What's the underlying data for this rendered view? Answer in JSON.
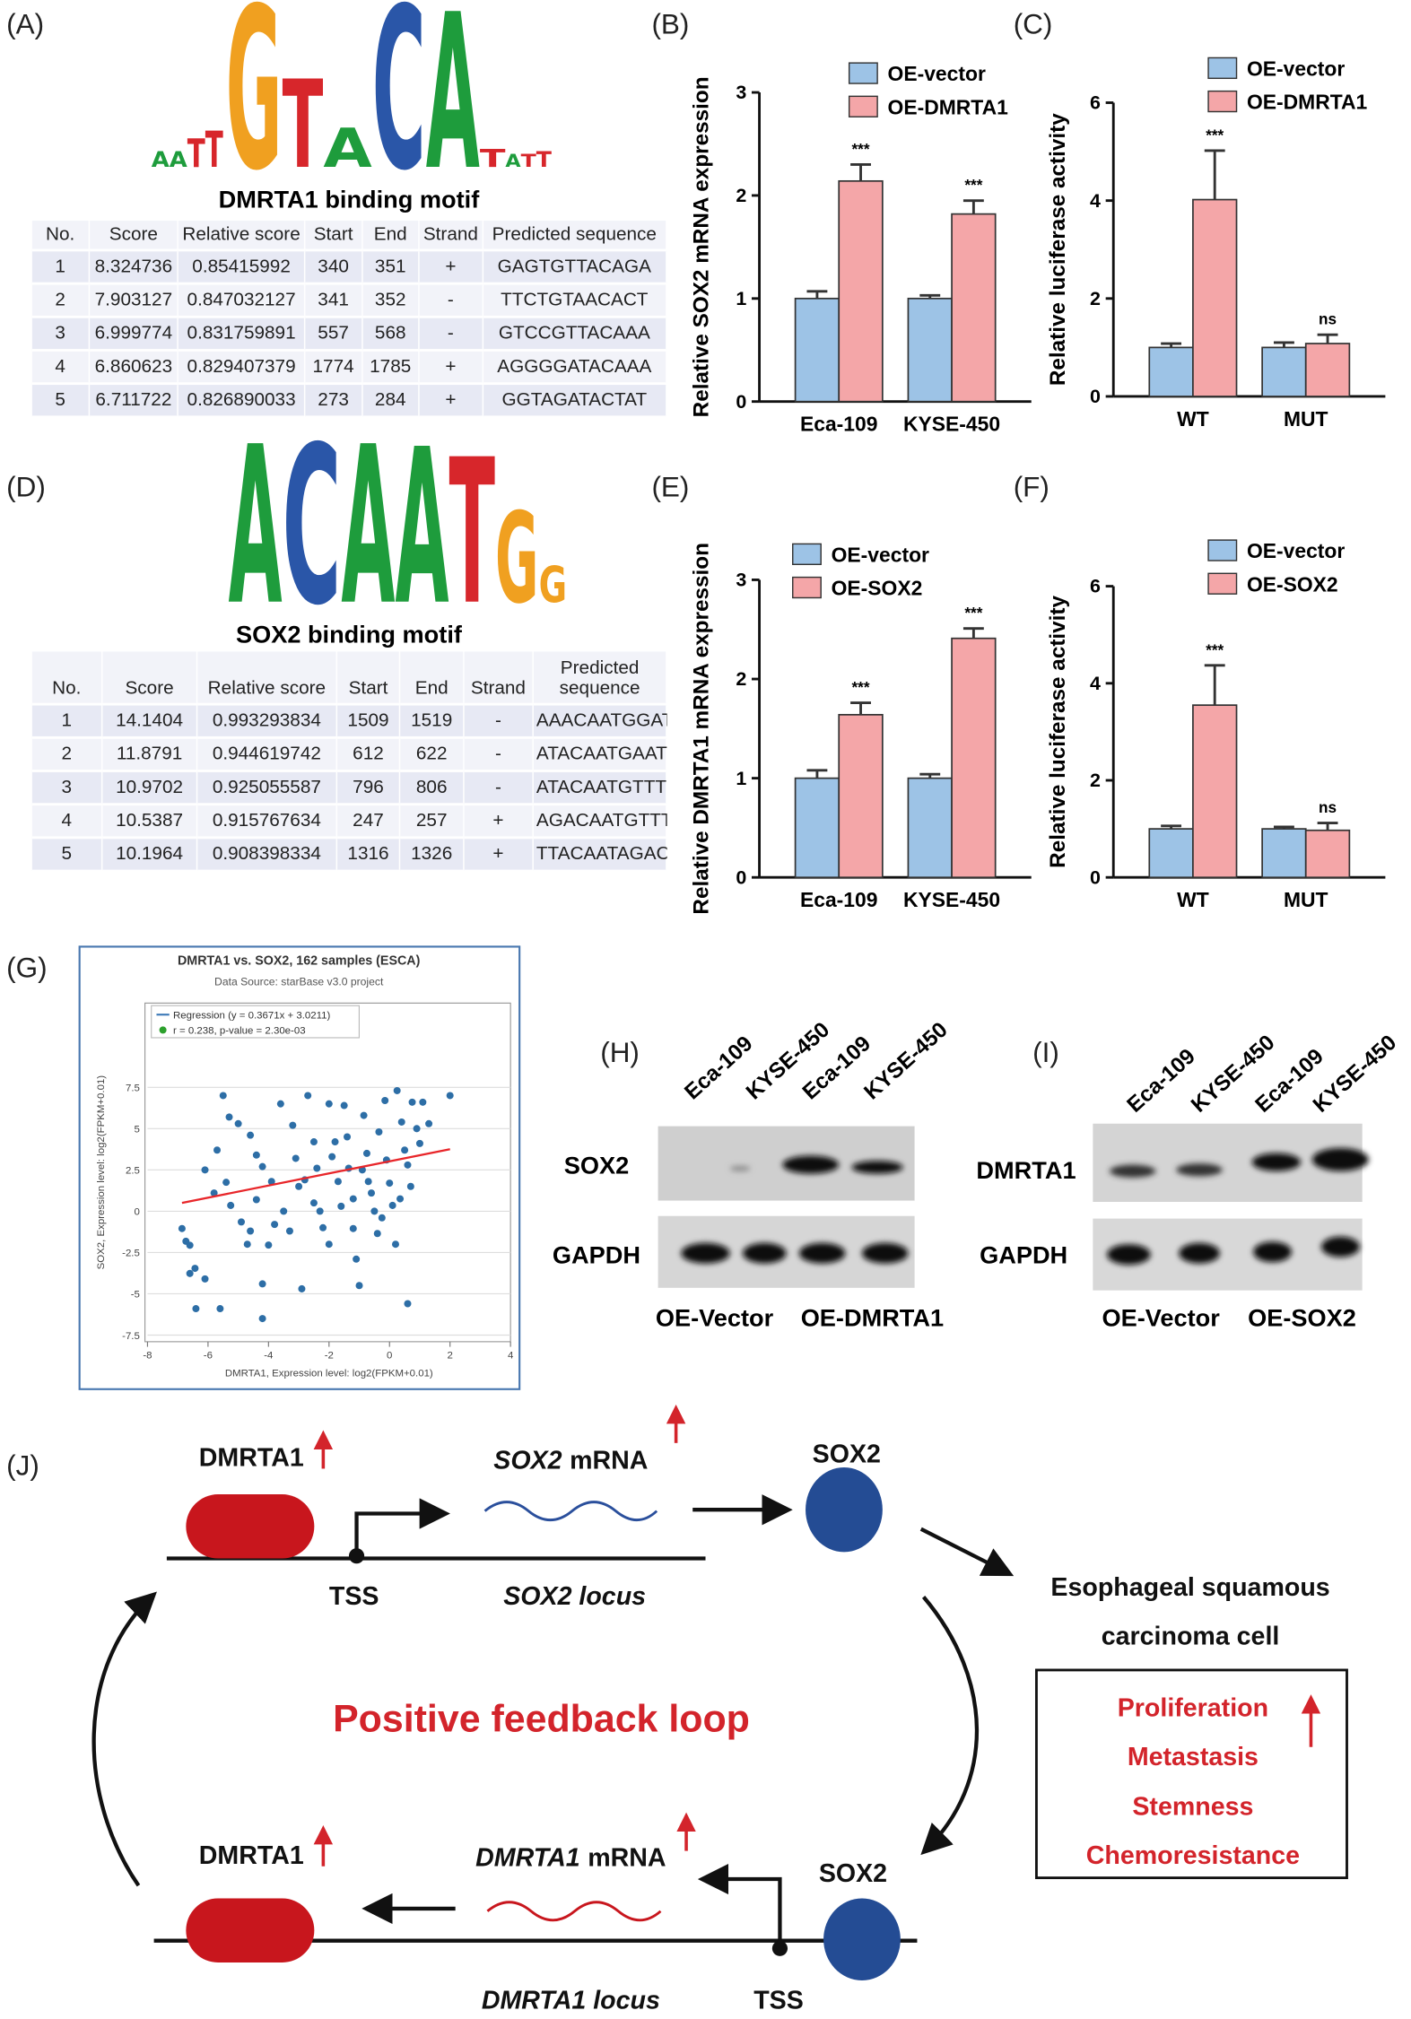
{
  "motifs": [
    {
      "label": "(A)",
      "logo": [
        "A",
        "A",
        "T",
        "T",
        "G",
        "T",
        "A",
        "C",
        "A",
        "T",
        "A",
        "T",
        "T"
      ],
      "title": "DMRTA1 binding motif",
      "table": {
        "header": [
          "No.",
          "Score",
          "Relative score",
          "Start",
          "End",
          "Strand",
          "Predicted sequence"
        ],
        "rows": [
          [
            "1",
            "8.324736",
            "0.85415992",
            "340",
            "351",
            "+",
            "GAGTGTTACAGA"
          ],
          [
            "2",
            "7.903127",
            "0.847032127",
            "341",
            "352",
            "-",
            "TTCTGTAACACT"
          ],
          [
            "3",
            "6.999774",
            "0.831759891",
            "557",
            "568",
            "-",
            "GTCCGTTACAAA"
          ],
          [
            "4",
            "6.860623",
            "0.829407379",
            "1774",
            "1785",
            "+",
            "AGGGGATACAAA"
          ],
          [
            "5",
            "6.711722",
            "0.826890033",
            "273",
            "284",
            "+",
            "GGTAGATACTAT"
          ]
        ]
      }
    },
    {
      "label": "(D)",
      "logo": [
        "A",
        "C",
        "A",
        "A",
        "T",
        "G",
        "G"
      ],
      "title": "SOX2 binding motif",
      "table": {
        "header": [
          "No.",
          "Score",
          "Relative score",
          "Start",
          "End",
          "Strand",
          "Predicted sequence"
        ],
        "rows": [
          [
            "1",
            "14.1404",
            "0.993293834",
            "1509",
            "1519",
            "-",
            "AAACAATGGAT"
          ],
          [
            "2",
            "11.8791",
            "0.944619742",
            "612",
            "622",
            "-",
            "ATACAATGAAT"
          ],
          [
            "3",
            "10.9702",
            "0.925055587",
            "796",
            "806",
            "-",
            "ATACAATGTTT"
          ],
          [
            "4",
            "10.5387",
            "0.915767634",
            "247",
            "257",
            "+",
            "AGACAATGTTT"
          ],
          [
            "5",
            "10.1964",
            "0.908398334",
            "1316",
            "1326",
            "+",
            "TTACAATAGAC"
          ]
        ]
      }
    }
  ],
  "chart_data": [
    {
      "type": "bar",
      "label": "(B)",
      "y_label": "Relative SOX2 mRNA expression",
      "categories": [
        "Eca-109",
        "KYSE-450"
      ],
      "ylim": [
        0,
        3
      ],
      "yticks": [
        0,
        1,
        2,
        3
      ],
      "series": [
        {
          "name": "OE-vector",
          "color": "#9dc3e6",
          "values": [
            1.0,
            1.0
          ],
          "errors": [
            0.07,
            0.03
          ]
        },
        {
          "name": "OE-DMRTA1",
          "color": "#f4a6a8",
          "values": [
            2.14,
            1.82
          ],
          "errors": [
            0.16,
            0.13
          ],
          "significance": [
            "***",
            "***"
          ]
        }
      ]
    },
    {
      "type": "bar",
      "label": "(C)",
      "y_label": "Relative luciferase activity",
      "categories": [
        "WT",
        "MUT"
      ],
      "ylim": [
        0,
        6
      ],
      "yticks": [
        0,
        2,
        4,
        6
      ],
      "series": [
        {
          "name": "OE-vector",
          "color": "#9dc3e6",
          "values": [
            1.0,
            1.0
          ],
          "errors": [
            0.08,
            0.1
          ]
        },
        {
          "name": "OE-DMRTA1",
          "color": "#f4a6a8",
          "values": [
            4.02,
            1.08
          ],
          "errors": [
            1.0,
            0.18
          ],
          "significance": [
            "***",
            "ns"
          ]
        }
      ]
    },
    {
      "type": "bar",
      "label": "(E)",
      "y_label": "Relative DMRTA1 mRNA expression",
      "categories": [
        "Eca-109",
        "KYSE-450"
      ],
      "ylim": [
        0,
        3
      ],
      "yticks": [
        0,
        1,
        2,
        3
      ],
      "series": [
        {
          "name": "OE-vector",
          "color": "#9dc3e6",
          "values": [
            1.0,
            1.0
          ],
          "errors": [
            0.08,
            0.04
          ]
        },
        {
          "name": "OE-SOX2",
          "color": "#f4a6a8",
          "values": [
            1.64,
            2.41
          ],
          "errors": [
            0.12,
            0.1
          ],
          "significance": [
            "***",
            "***"
          ]
        }
      ]
    },
    {
      "type": "bar",
      "label": "(F)",
      "y_label": "Relative luciferase activity",
      "categories": [
        "WT",
        "MUT"
      ],
      "ylim": [
        0,
        6
      ],
      "yticks": [
        0,
        2,
        4,
        6
      ],
      "series": [
        {
          "name": "OE-vector",
          "color": "#9dc3e6",
          "values": [
            1.0,
            1.0
          ],
          "errors": [
            0.06,
            0.04
          ]
        },
        {
          "name": "OE-SOX2",
          "color": "#f4a6a8",
          "values": [
            3.55,
            0.97
          ],
          "errors": [
            0.82,
            0.15
          ],
          "significance": [
            "***",
            "ns"
          ]
        }
      ]
    },
    {
      "type": "scatter",
      "label": "(G)",
      "title": "DMRTA1 vs. SOX2, 162 samples (ESCA)",
      "subtitle": "Data Source: starBase v3.0 project",
      "legend": [
        "Regression (y = 0.3671x + 3.0211)",
        "r = 0.238, p-value = 2.30e-03"
      ],
      "x_label": "DMRTA1, Expression level: log2(FPKM+0.01)",
      "y_label": "SOX2, Expression level: log2(FPKM+0.01)",
      "xlim": [
        -8,
        4
      ],
      "ylim": [
        -7.9,
        12.6
      ],
      "xticks": [
        -8,
        -6,
        -4,
        -2,
        0,
        2,
        4
      ],
      "yticks": [
        -7.5,
        -5,
        -2.5,
        0,
        2.5,
        5,
        7.5
      ],
      "grid": true,
      "color": "#2d6ea6",
      "regression": {
        "slope": 0.3671,
        "intercept": 3.0211,
        "color": "#e8262a"
      },
      "x": [
        -6.73,
        -6.86,
        -6.6,
        -6.43,
        -6.6,
        -6.4,
        -6.1,
        -5.6,
        -5.7,
        -5.5,
        -5.3,
        -5.4,
        -5.25,
        -4.7,
        -4.6,
        -4.4,
        -4.2,
        -3.9,
        -4.0,
        -4.2,
        -4.2,
        -3.6,
        -3.5,
        -3.2,
        -3.1,
        -3.0,
        -2.9,
        -2.7,
        -2.5,
        -2.4,
        -2.3,
        -2.2,
        -2.0,
        -2.0,
        -1.9,
        -1.7,
        -1.6,
        -1.5,
        -1.4,
        -1.35,
        -1.2,
        -1.2,
        -1.1,
        -1.0,
        -0.85,
        -0.75,
        -0.7,
        -0.5,
        -0.4,
        -0.35,
        -0.15,
        -0.1,
        0.0,
        0.1,
        0.2,
        0.25,
        0.4,
        0.5,
        0.6,
        0.7,
        0.75,
        0.9,
        1.0,
        1.1,
        1.3,
        2.0,
        -6.1,
        -5.8,
        -5.0,
        -4.9,
        -4.6,
        -4.4,
        -3.8,
        -3.3,
        -2.8,
        -2.5,
        -1.8,
        -0.9,
        -0.6,
        -0.25,
        0.35,
        0.6
      ],
      "values": [
        -1.82,
        -1.05,
        -2.06,
        -3.46,
        -3.77,
        -5.9,
        -4.1,
        -5.9,
        3.7,
        7.0,
        5.7,
        1.75,
        0.35,
        -2.0,
        4.6,
        3.4,
        2.7,
        1.8,
        -2.05,
        -6.5,
        -4.4,
        6.5,
        0.0,
        5.2,
        3.2,
        1.5,
        -4.7,
        7.0,
        4.2,
        2.6,
        0.0,
        -1.0,
        -2.0,
        6.5,
        3.3,
        1.8,
        0.3,
        6.4,
        4.5,
        2.6,
        0.75,
        -1.05,
        -2.9,
        -4.5,
        5.8,
        3.5,
        1.8,
        0.0,
        -1.35,
        4.8,
        6.7,
        3.1,
        1.7,
        0.35,
        -2.0,
        7.3,
        5.4,
        3.7,
        -5.6,
        1.5,
        6.6,
        5.0,
        4.1,
        6.6,
        5.3,
        7.0,
        2.5,
        1.1,
        5.3,
        -0.65,
        -1.2,
        0.7,
        -0.8,
        -1.2,
        1.9,
        0.5,
        4.2,
        2.5,
        1.1,
        -0.4,
        0.75,
        2.8
      ]
    }
  ],
  "blots": [
    {
      "label": "(H)",
      "lanes": [
        "Eca-109",
        "KYSE-450",
        "Eca-109",
        "KYSE-450"
      ],
      "rows": [
        "SOX2",
        "GAPDH"
      ],
      "groups": [
        "OE-Vector",
        "OE-DMRTA1"
      ]
    },
    {
      "label": "(I)",
      "lanes": [
        "Eca-109",
        "KYSE-450",
        "Eca-109",
        "KYSE-450"
      ],
      "rows": [
        "DMRTA1",
        "GAPDH"
      ],
      "groups": [
        "OE-Vector",
        "OE-SOX2"
      ]
    }
  ],
  "diagram": {
    "label": "(J)",
    "top": {
      "protein": "DMRTA1",
      "mrna_gene": "SOX2",
      "mrna_word": "mRNA",
      "product": "SOX2",
      "tss": "TSS",
      "locus": "SOX2 locus"
    },
    "bottom": {
      "protein": "DMRTA1",
      "mrna_gene": "DMRTA1",
      "mrna_word": "mRNA",
      "factor": "SOX2",
      "tss": "TSS",
      "locus": "DMRTA1 locus"
    },
    "cell": [
      "Esophageal squamous",
      "carcinoma cell"
    ],
    "loop": "Positive feedback loop",
    "phenotypes": [
      "Proliferation",
      "Metastasis",
      "Stemness",
      "Chemoresistance"
    ]
  }
}
